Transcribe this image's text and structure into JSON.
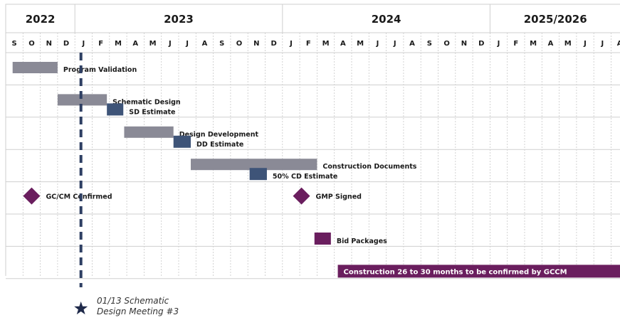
{
  "timeline": {
    "years": [
      {
        "label": "2022",
        "start": 0,
        "span": 4
      },
      {
        "label": "2023",
        "start": 4,
        "span": 12
      },
      {
        "label": "2024",
        "start": 16,
        "span": 12
      },
      {
        "label": "2025/2026",
        "start": 28,
        "span": 8
      }
    ],
    "months": [
      "S",
      "O",
      "N",
      "D",
      "J",
      "F",
      "M",
      "A",
      "M",
      "J",
      "J",
      "A",
      "S",
      "O",
      "N",
      "D",
      "J",
      "F",
      "M",
      "A",
      "M",
      "J",
      "J",
      "A",
      "S",
      "O",
      "N",
      "D",
      "J",
      "F",
      "M",
      "A",
      "M",
      "J",
      "J",
      "A"
    ]
  },
  "colors": {
    "phase_bar": "#8a8a96",
    "estimate_bar": "#3e5478",
    "milestone": "#6a1e5e",
    "construction_bar": "#6a1e5e",
    "today_line": "#2e3f63"
  },
  "tasks": [
    {
      "name": "Program Validation",
      "start": 0.4,
      "end": 3.0,
      "row": 0,
      "slot": 0,
      "kind": "phase"
    },
    {
      "name": "Schematic Design",
      "start": 3.0,
      "end": 5.85,
      "row": 1,
      "slot": 0,
      "kind": "phase"
    },
    {
      "name": "SD Estimate",
      "start": 5.85,
      "end": 6.8,
      "row": 1,
      "slot": 1,
      "kind": "estimate"
    },
    {
      "name": "Design Development",
      "start": 6.85,
      "end": 9.7,
      "row": 2,
      "slot": 0,
      "kind": "phase"
    },
    {
      "name": "DD Estimate",
      "start": 9.7,
      "end": 10.7,
      "row": 2,
      "slot": 1,
      "kind": "estimate"
    },
    {
      "name": "Construction Documents",
      "start": 10.7,
      "end": 18.0,
      "row": 3,
      "slot": 0,
      "kind": "phase"
    },
    {
      "name": "50% CD Estimate",
      "start": 14.1,
      "end": 15.1,
      "row": 3,
      "slot": 1,
      "kind": "estimate"
    },
    {
      "name": "Bid Packages",
      "start": 17.85,
      "end": 18.8,
      "row": 5,
      "slot": 1,
      "kind": "estimate-purple"
    },
    {
      "name": "Construction 26 to 30 months to be confirmed by GCCM",
      "start": 19.2,
      "end": 36.2,
      "row": 6,
      "slot": 1,
      "kind": "construction"
    }
  ],
  "milestones": [
    {
      "name": "GC/CM Confirmed",
      "at": 1.5,
      "row": 4
    },
    {
      "name": "GMP Signed",
      "at": 17.1,
      "row": 4
    }
  ],
  "today_marker": {
    "at": 4.35,
    "note_line1": "01/13 Schematic",
    "note_line2": "Design Meeting #3"
  }
}
